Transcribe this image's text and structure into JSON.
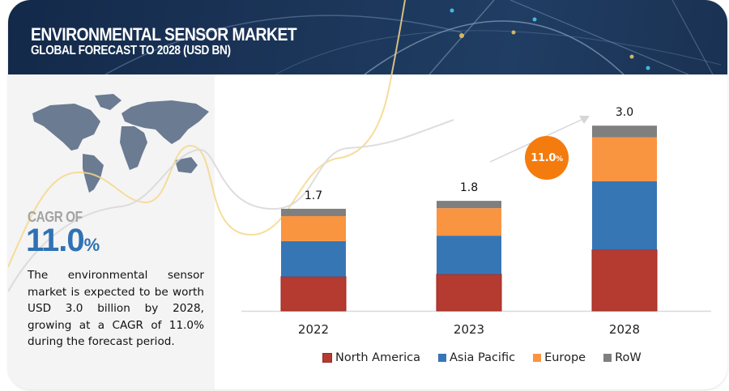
{
  "header": {
    "title": "ENVIRONMENTAL SENSOR MARKET",
    "subtitle": "GLOBAL FORECAST TO 2028 (USD BN)"
  },
  "left_panel": {
    "map_icon": "world-map",
    "cagr_label": "CAGR OF",
    "cagr_value": "11.0",
    "cagr_unit": "%",
    "description": "The environmental sensor market is expected to be worth USD  3.0 billion by 2028, growing at a CAGR of 11.0% during the forecast period."
  },
  "growth_badge": {
    "value": "11.0",
    "unit": "%"
  },
  "colors": {
    "North America": "#b53a30",
    "Asia Pacific": "#3676b5",
    "Europe": "#f99441",
    "RoW": "#7f7f7f",
    "badge": "#f47c0f",
    "cagr_text": "#2f72b4"
  },
  "chart_data": {
    "type": "bar",
    "stacked": true,
    "title": "Environmental Sensor Market, Global Forecast to 2028 (USD BN)",
    "xlabel": "",
    "ylabel": "",
    "categories": [
      "2022",
      "2023",
      "2028"
    ],
    "totals": [
      "1.7",
      "1.8",
      "3.0"
    ],
    "series": [
      {
        "name": "North America",
        "values": [
          0.56,
          0.6,
          1.0
        ]
      },
      {
        "name": "Asia Pacific",
        "values": [
          0.58,
          0.63,
          1.12
        ]
      },
      {
        "name": "Europe",
        "values": [
          0.41,
          0.45,
          0.72
        ]
      },
      {
        "name": "RoW",
        "values": [
          0.12,
          0.12,
          0.19
        ]
      }
    ],
    "ylim": [
      0,
      3.0
    ],
    "grid": false,
    "legend": "bottom",
    "annotation": "11.0% CAGR"
  }
}
